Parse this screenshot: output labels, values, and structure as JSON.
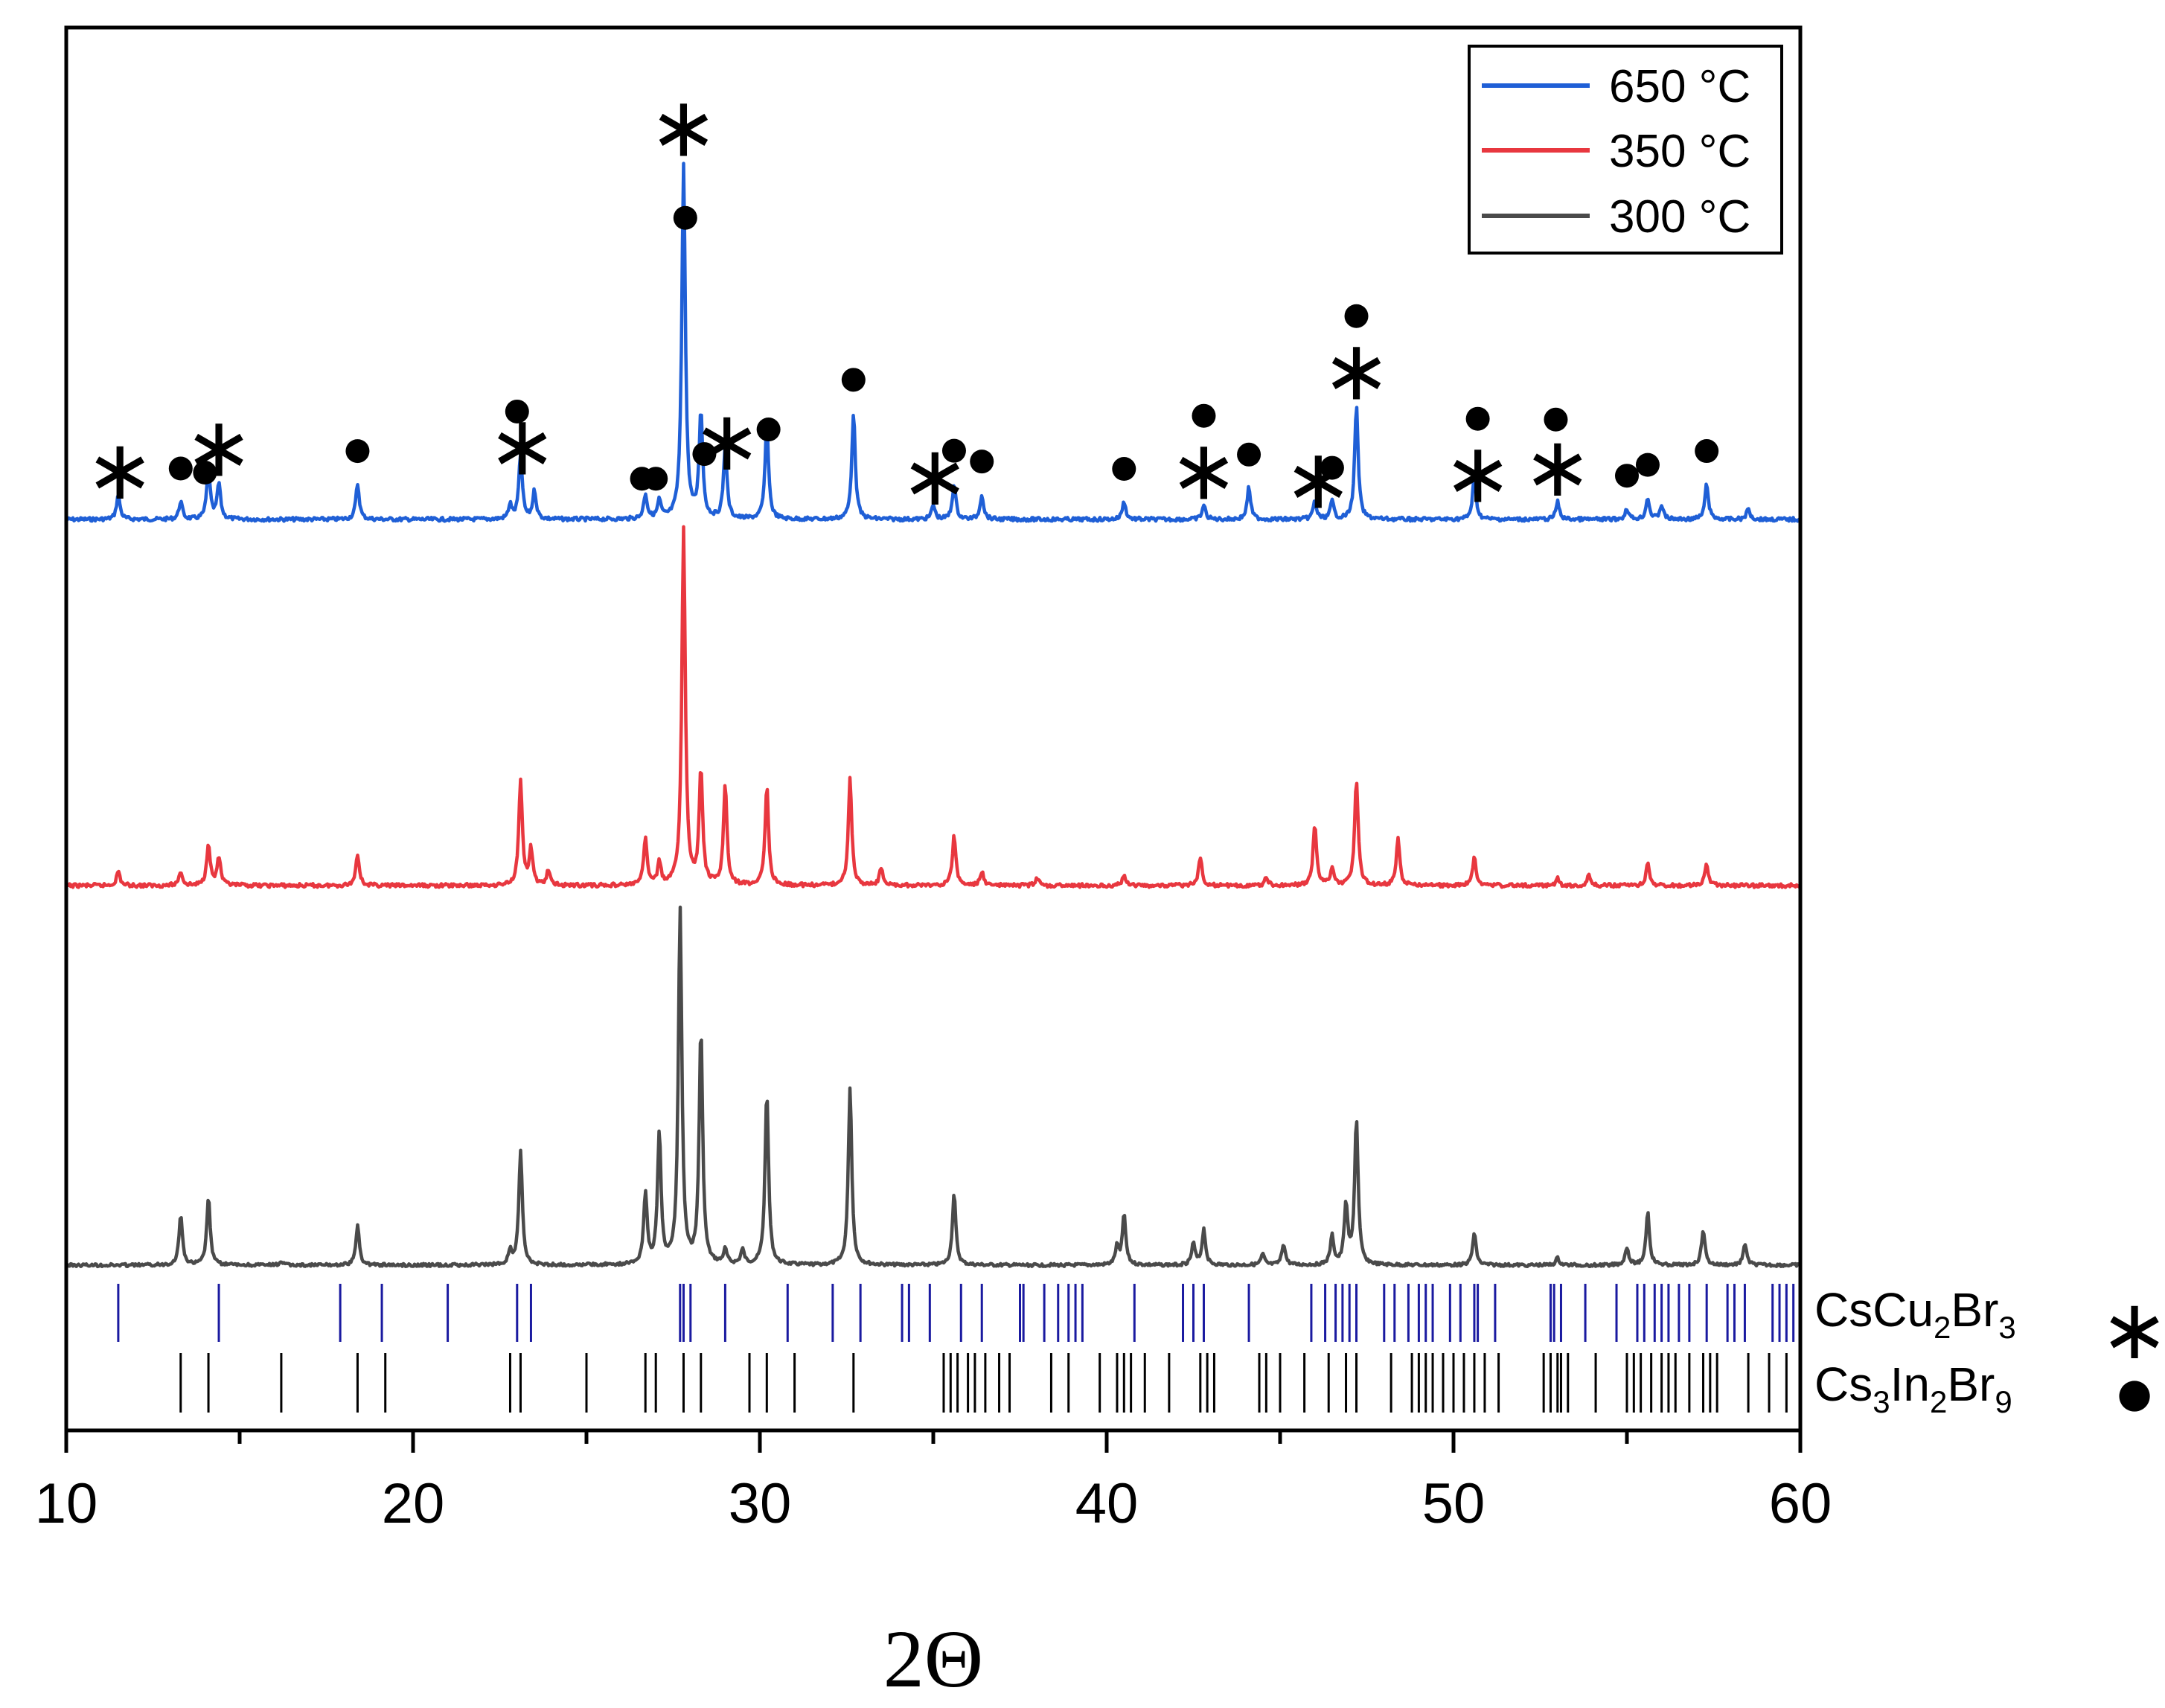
{
  "chart_data": {
    "type": "line",
    "title": "",
    "xlabel": "2Θ",
    "ylabel": "",
    "xlim": [
      10,
      60
    ],
    "xticks": [
      10,
      20,
      30,
      40,
      50,
      60
    ],
    "grid": false,
    "legend_position": "top-right",
    "y_units": "normalized intensity (0-1) per pattern",
    "series": [
      {
        "name": "650 °C",
        "color": "#1f5fd6",
        "baseline": 0,
        "peaks": [
          [
            11.5,
            0.07
          ],
          [
            13.3,
            0.05
          ],
          [
            14.1,
            0.14
          ],
          [
            14.4,
            0.1
          ],
          [
            18.4,
            0.1
          ],
          [
            22.8,
            0.04
          ],
          [
            23.1,
            0.18
          ],
          [
            23.5,
            0.08
          ],
          [
            26.7,
            0.07
          ],
          [
            27.1,
            0.05
          ],
          [
            27.8,
            1.0
          ],
          [
            28.3,
            0.3
          ],
          [
            29.0,
            0.2
          ],
          [
            30.2,
            0.27
          ],
          [
            32.7,
            0.3
          ],
          [
            35.0,
            0.04
          ],
          [
            35.6,
            0.1
          ],
          [
            36.4,
            0.07
          ],
          [
            40.5,
            0.05
          ],
          [
            42.8,
            0.04
          ],
          [
            44.1,
            0.09
          ],
          [
            46.0,
            0.05
          ],
          [
            46.5,
            0.05
          ],
          [
            47.2,
            0.32
          ],
          [
            50.6,
            0.12
          ],
          [
            53.0,
            0.05
          ],
          [
            55.0,
            0.03
          ],
          [
            55.6,
            0.06
          ],
          [
            56.0,
            0.04
          ],
          [
            57.3,
            0.1
          ],
          [
            58.5,
            0.03
          ]
        ]
      },
      {
        "name": "350 °C",
        "color": "#e8373f",
        "baseline": 0,
        "peaks": [
          [
            11.5,
            0.04
          ],
          [
            13.3,
            0.04
          ],
          [
            14.1,
            0.12
          ],
          [
            14.4,
            0.08
          ],
          [
            18.4,
            0.09
          ],
          [
            23.1,
            0.3
          ],
          [
            23.4,
            0.1
          ],
          [
            23.9,
            0.04
          ],
          [
            26.7,
            0.13
          ],
          [
            27.1,
            0.06
          ],
          [
            27.8,
            1.0
          ],
          [
            28.3,
            0.32
          ],
          [
            29.0,
            0.28
          ],
          [
            30.2,
            0.28
          ],
          [
            32.6,
            0.3
          ],
          [
            33.5,
            0.05
          ],
          [
            35.6,
            0.14
          ],
          [
            36.4,
            0.04
          ],
          [
            38.0,
            0.02
          ],
          [
            40.5,
            0.03
          ],
          [
            42.7,
            0.08
          ],
          [
            44.6,
            0.02
          ],
          [
            46.0,
            0.17
          ],
          [
            46.5,
            0.05
          ],
          [
            47.2,
            0.3
          ],
          [
            48.4,
            0.13
          ],
          [
            50.6,
            0.08
          ],
          [
            53.0,
            0.02
          ],
          [
            53.9,
            0.03
          ],
          [
            55.6,
            0.06
          ],
          [
            57.3,
            0.06
          ]
        ]
      },
      {
        "name": "300 °C",
        "color": "#4a4a4a",
        "baseline": 0,
        "peaks": [
          [
            13.3,
            0.14
          ],
          [
            14.1,
            0.19
          ],
          [
            16.2,
            0.01
          ],
          [
            18.4,
            0.11
          ],
          [
            22.8,
            0.04
          ],
          [
            23.1,
            0.32
          ],
          [
            26.7,
            0.2
          ],
          [
            27.1,
            0.37
          ],
          [
            27.7,
            1.0
          ],
          [
            28.3,
            0.66
          ],
          [
            29.0,
            0.04
          ],
          [
            29.5,
            0.04
          ],
          [
            30.2,
            0.49
          ],
          [
            32.6,
            0.5
          ],
          [
            35.6,
            0.2
          ],
          [
            40.3,
            0.05
          ],
          [
            40.5,
            0.14
          ],
          [
            42.5,
            0.06
          ],
          [
            42.8,
            0.1
          ],
          [
            44.5,
            0.03
          ],
          [
            45.1,
            0.06
          ],
          [
            46.5,
            0.08
          ],
          [
            46.9,
            0.17
          ],
          [
            47.2,
            0.41
          ],
          [
            50.6,
            0.09
          ],
          [
            53.0,
            0.02
          ],
          [
            55.0,
            0.05
          ],
          [
            55.6,
            0.15
          ],
          [
            57.2,
            0.1
          ],
          [
            58.4,
            0.06
          ]
        ]
      }
    ],
    "reference_phases": [
      {
        "name_base": "CsCu",
        "sub1": "2",
        "name_mid": "Br",
        "sub2": "3",
        "symbol": "∗",
        "color": "#1a1aa0",
        "positions": [
          11.5,
          14.4,
          17.9,
          19.1,
          21.0,
          23.0,
          23.4,
          27.7,
          27.8,
          28.0,
          29.0,
          30.8,
          32.1,
          32.9,
          34.1,
          34.3,
          34.9,
          35.8,
          36.4,
          37.5,
          37.6,
          38.2,
          38.6,
          38.9,
          39.1,
          39.3,
          40.8,
          42.2,
          42.5,
          42.8,
          44.1,
          45.9,
          46.3,
          46.6,
          46.8,
          47.0,
          47.2,
          48.0,
          48.3,
          48.7,
          49.0,
          49.2,
          49.4,
          49.9,
          50.2,
          50.6,
          50.7,
          51.2,
          52.8,
          52.9,
          53.1,
          53.8,
          54.7,
          55.3,
          55.5,
          55.8,
          56.0,
          56.2,
          56.5,
          56.8,
          57.3,
          57.9,
          58.1,
          58.4,
          59.2,
          59.4,
          59.6,
          59.8,
          60.0
        ]
      },
      {
        "name_base": "Cs",
        "sub1": "3",
        "name_mid": "In",
        "sub2": "2",
        "name_end": "Br",
        "sub3": "9",
        "symbol": "●",
        "color": "#000000",
        "positions": [
          13.3,
          14.1,
          16.2,
          18.4,
          19.2,
          22.8,
          23.1,
          25.0,
          26.7,
          27.0,
          27.8,
          28.3,
          29.7,
          30.2,
          31.0,
          32.7,
          35.3,
          35.5,
          35.7,
          36.0,
          36.2,
          36.5,
          36.9,
          37.2,
          38.4,
          38.9,
          39.8,
          40.3,
          40.5,
          40.7,
          41.1,
          41.8,
          42.7,
          42.9,
          43.1,
          44.4,
          44.6,
          45.0,
          45.7,
          46.4,
          46.9,
          47.2,
          48.2,
          48.8,
          49.0,
          49.2,
          49.4,
          49.7,
          50.0,
          50.3,
          50.6,
          50.9,
          51.3,
          52.6,
          52.8,
          53.0,
          53.1,
          53.3,
          54.1,
          55.0,
          55.2,
          55.4,
          55.7,
          56.0,
          56.2,
          56.4,
          56.8,
          57.2,
          57.4,
          57.6,
          58.5,
          59.1,
          59.6
        ]
      }
    ],
    "annotations_650": {
      "stars": [
        11.55,
        14.4,
        23.15,
        27.8,
        29.05,
        35.05,
        42.8,
        46.1,
        47.2,
        50.7,
        53.0
      ],
      "dots": [
        13.3,
        14.0,
        18.4,
        23.0,
        26.6,
        27.0,
        27.85,
        28.4,
        30.25,
        32.7,
        35.6,
        36.4,
        40.5,
        42.8,
        44.1,
        46.5,
        47.2,
        50.7,
        52.95,
        55.0,
        55.6,
        57.3
      ]
    }
  }
}
